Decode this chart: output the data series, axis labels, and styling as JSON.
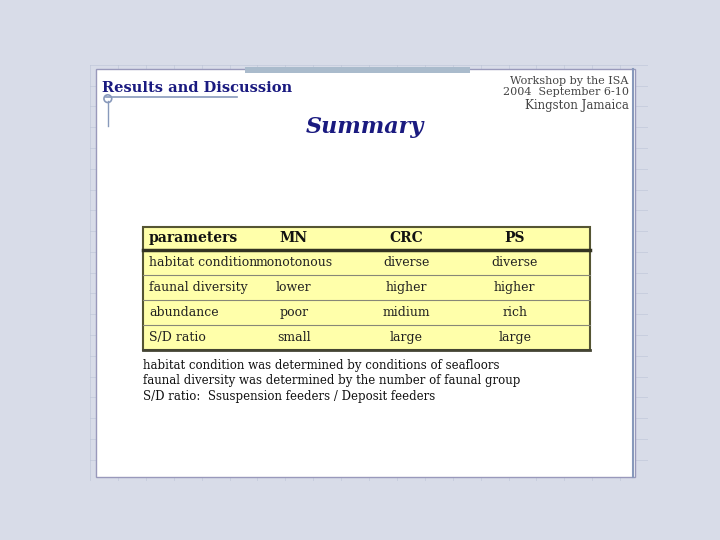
{
  "bg_color": "#d8dce8",
  "page_bg": "#ffffff",
  "title_workshop": "Workshop by the ISA",
  "title_date": "2004  September 6-10",
  "title_location": "Kingston Jamaica",
  "section_title": "Results and Discussion",
  "summary_title": "Summary",
  "table_header": [
    "parameters",
    "MN",
    "CRC",
    "PS"
  ],
  "table_rows": [
    [
      "habitat condition",
      "monotonous",
      "diverse",
      "diverse"
    ],
    [
      "faunal diversity",
      "lower",
      "higher",
      "higher"
    ],
    [
      "abundance",
      "poor",
      "midium",
      "rich"
    ],
    [
      "S/D ratio",
      "small",
      "large",
      "large"
    ]
  ],
  "footnotes": [
    "habitat condition was determined by conditions of seafloors",
    "faunal diversity was determined by the number of faunal group",
    "S/D ratio:  Ssuspension feeders / Deposit feeders"
  ],
  "table_bg": "#ffffaa",
  "header_text_color": "#111111",
  "row_text_color": "#222222",
  "section_title_color": "#1a1a80",
  "summary_color": "#1a1a80",
  "workshop_color": "#444444",
  "footnote_color": "#111111",
  "grid_color": "#b8c0d4",
  "line_color": "#8899bb",
  "top_bar_color": "#aabbcc"
}
